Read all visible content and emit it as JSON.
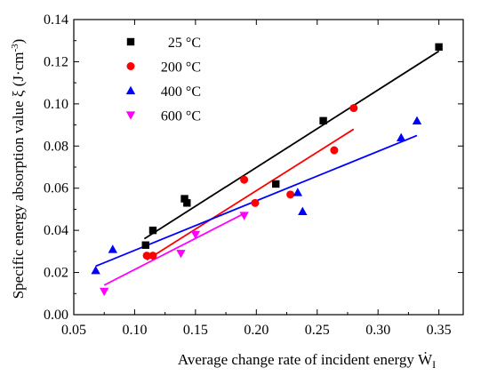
{
  "chart_data": {
    "type": "scatter",
    "xlabel": "Average change rate of incident energy Ẇ",
    "xlabel_sub": "I",
    "ylabel": "Specific energy absorption value ξ (J·cm",
    "ylabel_sup": "-3",
    "ylabel_close": ")",
    "xlim": [
      0.05,
      0.37
    ],
    "ylim": [
      0.0,
      0.14
    ],
    "x_ticks": [
      "0.05",
      "0.10",
      "0.15",
      "0.20",
      "0.25",
      "0.30",
      "0.35"
    ],
    "y_ticks": [
      "0.00",
      "0.02",
      "0.04",
      "0.06",
      "0.08",
      "0.10",
      "0.12",
      "0.14"
    ],
    "legend_position": "top-left",
    "grid": false,
    "series": [
      {
        "name": "25 °C",
        "marker": "square",
        "color": "#000000",
        "points": [
          [
            0.109,
            0.033
          ],
          [
            0.115,
            0.04
          ],
          [
            0.141,
            0.055
          ],
          [
            0.143,
            0.053
          ],
          [
            0.216,
            0.062
          ],
          [
            0.255,
            0.092
          ],
          [
            0.35,
            0.127
          ]
        ],
        "fit": [
          [
            0.108,
            0.036
          ],
          [
            0.35,
            0.125
          ]
        ]
      },
      {
        "name": "200 °C",
        "marker": "circle",
        "color": "#ff0000",
        "points": [
          [
            0.11,
            0.028
          ],
          [
            0.115,
            0.028
          ],
          [
            0.19,
            0.064
          ],
          [
            0.199,
            0.053
          ],
          [
            0.228,
            0.057
          ],
          [
            0.264,
            0.078
          ],
          [
            0.28,
            0.098
          ]
        ],
        "fit": [
          [
            0.11,
            0.026
          ],
          [
            0.28,
            0.088
          ]
        ]
      },
      {
        "name": "400 °C",
        "marker": "triangle-up",
        "color": "#0000ff",
        "points": [
          [
            0.068,
            0.021
          ],
          [
            0.082,
            0.031
          ],
          [
            0.234,
            0.058
          ],
          [
            0.238,
            0.049
          ],
          [
            0.319,
            0.084
          ],
          [
            0.332,
            0.092
          ]
        ],
        "fit": [
          [
            0.068,
            0.023
          ],
          [
            0.332,
            0.085
          ]
        ]
      },
      {
        "name": "600 °C",
        "marker": "triangle-down",
        "color": "#ff00ff",
        "points": [
          [
            0.075,
            0.011
          ],
          [
            0.138,
            0.029
          ],
          [
            0.15,
            0.038
          ],
          [
            0.19,
            0.047
          ]
        ],
        "fit": [
          [
            0.075,
            0.014
          ],
          [
            0.19,
            0.048
          ]
        ]
      }
    ]
  }
}
